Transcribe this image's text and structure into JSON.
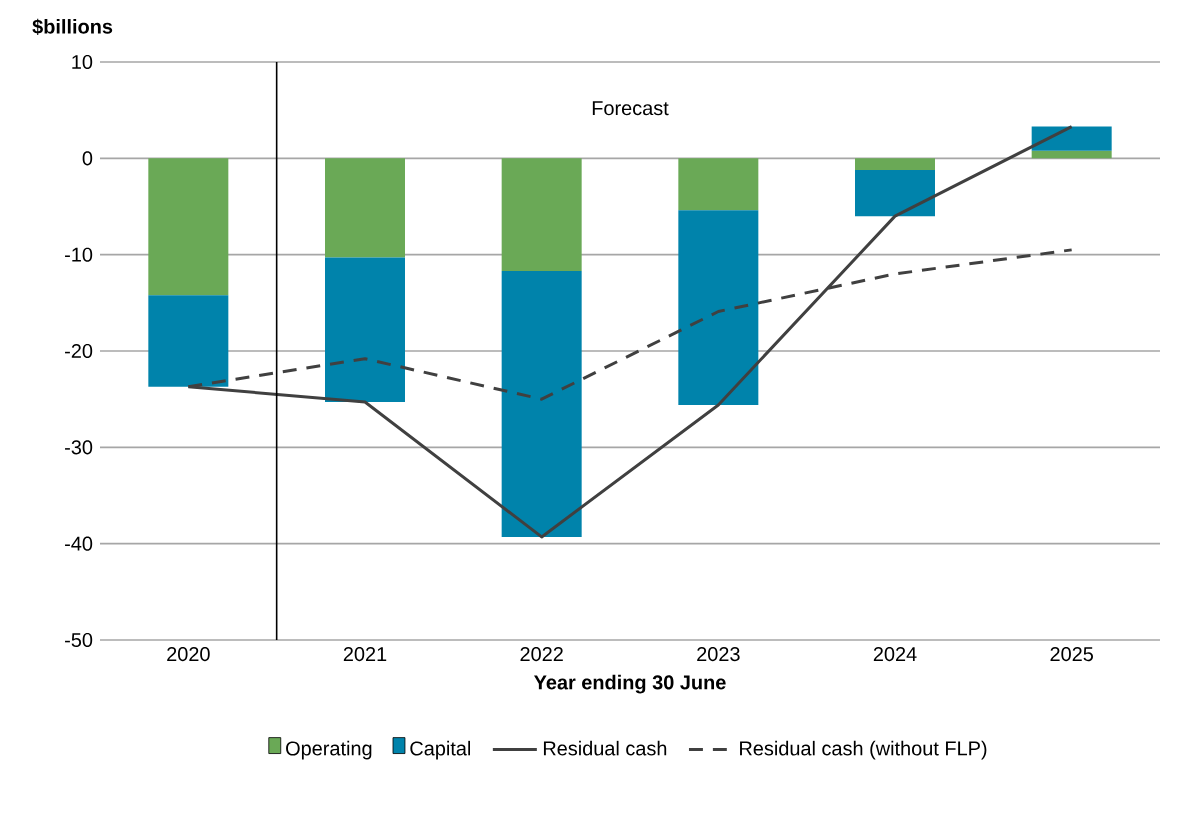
{
  "chart_data": {
    "type": "bar",
    "stacked": true,
    "ylabel": "$billions",
    "xlabel": "Year ending 30 June",
    "x": [
      2020,
      2021,
      2022,
      2023,
      2024,
      2025
    ],
    "xlim": [
      2019.5,
      2025.5
    ],
    "xticks": [
      2020,
      2021,
      2022,
      2023,
      2024,
      2025
    ],
    "series": [
      {
        "name": "Operating",
        "color": "#6aa956",
        "values": [
          -14.2,
          -10.3,
          -11.7,
          -5.4,
          -1.2,
          0.8
        ]
      },
      {
        "name": "Capital",
        "color": "#0083ab",
        "values": [
          -9.5,
          -15.0,
          -27.6,
          -20.2,
          -4.8,
          2.5
        ]
      },
      {
        "name": "Residual cash",
        "type": "line",
        "color": "#404040",
        "line_style": "solid",
        "values": [
          -23.7,
          -25.3,
          -39.3,
          -25.6,
          -6.0,
          3.3
        ]
      },
      {
        "name": "Residual cash (without FLP)",
        "type": "line",
        "color": "#404040",
        "line_style": "dashed",
        "values": [
          -23.7,
          -20.8,
          -25.0,
          -15.9,
          -12.0,
          -9.5
        ]
      }
    ],
    "ylim": [
      -50,
      10
    ],
    "yticks": [
      -50,
      -40,
      -30,
      -20,
      -10,
      0,
      10
    ],
    "grid": "y",
    "legend": "bottom",
    "ref_lines": [
      {
        "axis": "x",
        "value": 2020.5,
        "color": "#000000"
      }
    ],
    "annotations": [
      "Forecast"
    ]
  }
}
